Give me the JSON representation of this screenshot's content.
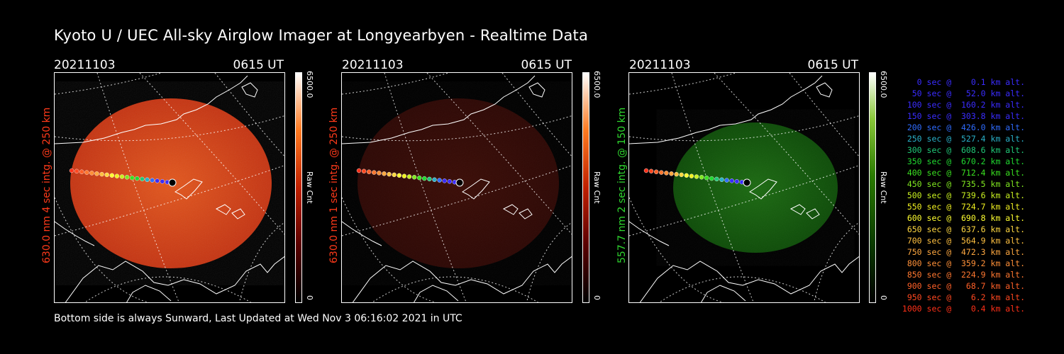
{
  "title": "Kyoto U / UEC All-sky Airglow Imager at Longyearbyen - Realtime Data",
  "panels": [
    {
      "date": "20211103",
      "time": "0615 UT",
      "ylabel": "630.0 nm 4 sec intg. @ 250 km",
      "ylabel_color": "#ff3a1a",
      "colorbar_max": "6500.0",
      "colorbar_min": "0",
      "colorbar_unit": "Raw Cnt",
      "colormap": "red",
      "brightness": "bright"
    },
    {
      "date": "20211103",
      "time": "0615 UT",
      "ylabel": "630.0 nm 1 sec intg. @ 250 km",
      "ylabel_color": "#ff3a1a",
      "colorbar_max": "6500.0",
      "colorbar_min": "0",
      "colorbar_unit": "Raw Cnt",
      "colormap": "red",
      "brightness": "dim"
    },
    {
      "date": "20211103",
      "time": "0615 UT",
      "ylabel": "557.7 nm 2 sec intg. @ 150 km",
      "ylabel_color": "#2fd82f",
      "colorbar_max": "6500.0",
      "colorbar_min": "0",
      "colorbar_unit": "Raw Cnt",
      "colormap": "green",
      "brightness": "dim"
    }
  ],
  "footer": "Bottom side is always Sunward, Last Updated at Wed Nov  3 06:16:02 2021 in UTC",
  "legend": [
    {
      "text": "   0 sec @    0.1 km alt.",
      "color": "#3a2cff"
    },
    {
      "text": "  50 sec @   52.0 km alt.",
      "color": "#3a2cff"
    },
    {
      "text": " 100 sec @  160.2 km alt.",
      "color": "#3a2cff"
    },
    {
      "text": " 150 sec @  303.8 km alt.",
      "color": "#3a2cff"
    },
    {
      "text": " 200 sec @  426.0 km alt.",
      "color": "#2f6cff"
    },
    {
      "text": " 250 sec @  527.4 km alt.",
      "color": "#2ab0c8"
    },
    {
      "text": " 300 sec @  608.6 km alt.",
      "color": "#20c878"
    },
    {
      "text": " 350 sec @  670.2 km alt.",
      "color": "#20d830"
    },
    {
      "text": " 400 sec @  712.4 km alt.",
      "color": "#3ae020"
    },
    {
      "text": " 450 sec @  735.5 km alt.",
      "color": "#80e820"
    },
    {
      "text": " 500 sec @  739.6 km alt.",
      "color": "#c8f020"
    },
    {
      "text": " 550 sec @  724.7 km alt.",
      "color": "#f0f020"
    },
    {
      "text": " 600 sec @  690.8 km alt.",
      "color": "#ffff30"
    },
    {
      "text": " 650 sec @  637.6 km alt.",
      "color": "#ffd840"
    },
    {
      "text": " 700 sec @  564.9 km alt.",
      "color": "#ffc040"
    },
    {
      "text": " 750 sec @  472.3 km alt.",
      "color": "#ffa840"
    },
    {
      "text": " 800 sec @  359.2 km alt.",
      "color": "#ff9038"
    },
    {
      "text": " 850 sec @  224.9 km alt.",
      "color": "#ff7830"
    },
    {
      "text": " 900 sec @   68.7 km alt.",
      "color": "#ff6028"
    },
    {
      "text": " 950 sec @    6.2 km alt.",
      "color": "#ff4820"
    },
    {
      "text": "1000 sec @    0.4 km alt.",
      "color": "#ff3018"
    }
  ],
  "colors": {
    "background": "#000000",
    "red_ylabel": "#ff3a1a",
    "green_ylabel": "#2fd82f"
  }
}
